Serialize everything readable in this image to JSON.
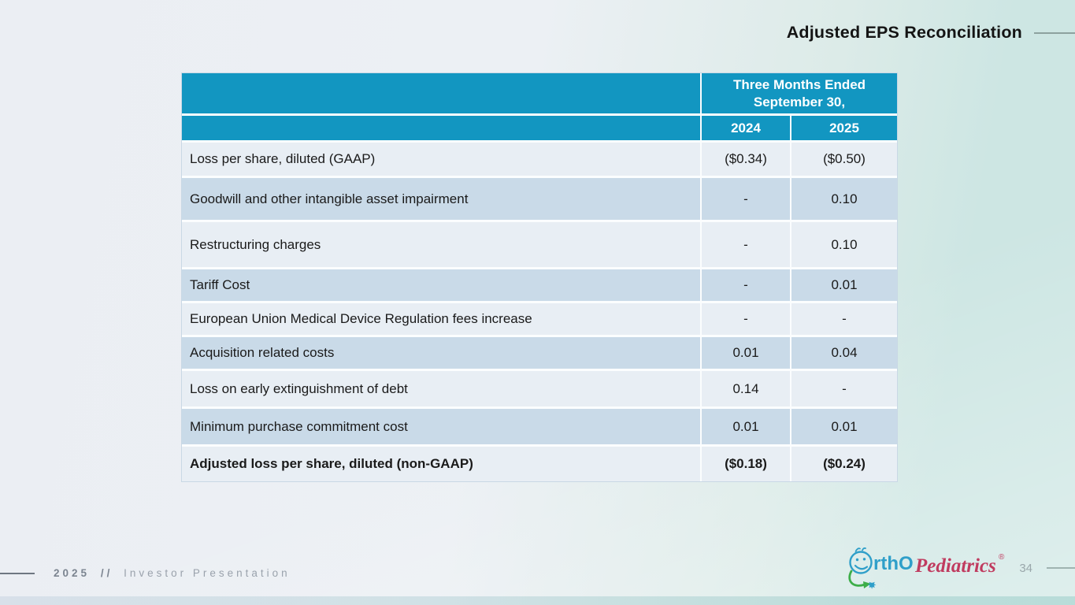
{
  "slide": {
    "title": "Adjusted EPS Reconciliation",
    "page_number": "34",
    "footer": {
      "year": "2025",
      "separator": "//",
      "label": "Investor Presentation"
    },
    "logo": {
      "brand_part1": "rthO",
      "brand_part2": "Pediatrics",
      "registered_mark": "®"
    }
  },
  "table": {
    "header": {
      "group_label": "Three Months Ended September 30,",
      "year_1": "2024",
      "year_2": "2025"
    },
    "rows": [
      {
        "label": "Loss per share, diluted (GAAP)",
        "v2024": "($0.34)",
        "v2025": "($0.50)",
        "shade": "light",
        "bold": false
      },
      {
        "label": "Goodwill and other intangible asset impairment",
        "v2024": "-",
        "v2025": "0.10",
        "shade": "dark",
        "bold": false
      },
      {
        "label": "Restructuring charges",
        "v2024": "-",
        "v2025": "0.10",
        "shade": "light",
        "bold": false
      },
      {
        "label": "Tariff Cost",
        "v2024": "-",
        "v2025": "0.01",
        "shade": "dark",
        "bold": false
      },
      {
        "label": "European Union Medical Device Regulation fees increase",
        "v2024": "-",
        "v2025": "-",
        "shade": "light",
        "bold": false
      },
      {
        "label": "Acquisition related costs",
        "v2024": "0.01",
        "v2025": "0.04",
        "shade": "dark",
        "bold": false
      },
      {
        "label": "Loss on early extinguishment of debt",
        "v2024": "0.14",
        "v2025": "-",
        "shade": "light",
        "bold": false
      },
      {
        "label": "Minimum purchase commitment cost",
        "v2024": "0.01",
        "v2025": "0.01",
        "shade": "dark",
        "bold": false
      },
      {
        "label": "Adjusted loss per share, diluted (non-GAAP)",
        "v2024": "($0.18)",
        "v2025": "($0.24)",
        "shade": "light",
        "bold": true
      }
    ]
  },
  "colors": {
    "header_teal": "#1296c1",
    "row_light": "#e8eef4",
    "row_dark": "#c9dae8",
    "background_left": "#ebeef3",
    "background_right": "#cde6e3",
    "logo_blue": "#2f9fc9",
    "logo_red": "#c03b5f",
    "logo_green": "#3dae49"
  }
}
